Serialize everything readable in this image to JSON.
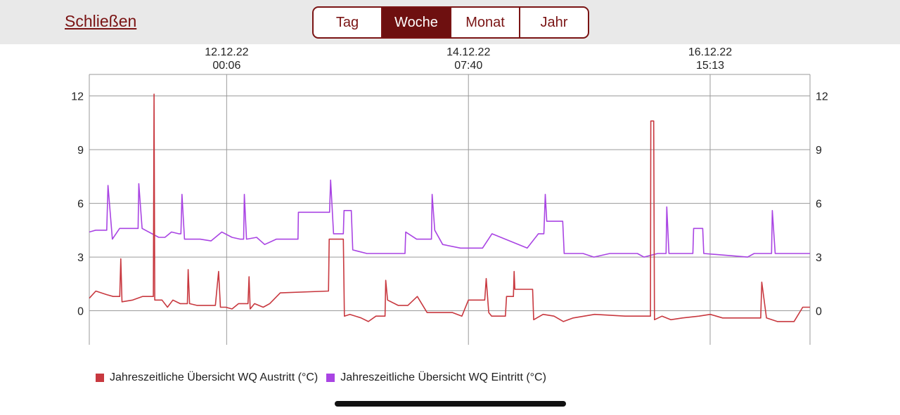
{
  "header": {
    "close_label": "Schließen",
    "periods": [
      "Tag",
      "Woche",
      "Monat",
      "Jahr"
    ],
    "active_period": "Woche",
    "accent_color": "#7a1414"
  },
  "chart_data": {
    "type": "line",
    "x_axis": {
      "kind": "time",
      "range": [
        "10.12.22 16:32",
        "17.12.22 14:10"
      ],
      "ticks": [
        {
          "date": "12.12.22",
          "time": "00:06",
          "t": "12.12.22 00:06"
        },
        {
          "date": "14.12.22",
          "time": "07:40",
          "t": "14.12.22 07:40"
        },
        {
          "date": "16.12.22",
          "time": "15:13",
          "t": "16.12.22 15:13"
        }
      ]
    },
    "y_axis": {
      "ylim": [
        -1.9,
        13.2
      ],
      "ticks": [
        0,
        3,
        6,
        9,
        12
      ],
      "ticks_both_sides": true
    },
    "grid": true,
    "legend_position": "bottom-left",
    "series": [
      {
        "name": "Jahreszeitliche Übersicht WQ Austritt (°C)",
        "color": "#c8383f",
        "points": [
          [
            "10.12.22 16:32",
            0.7
          ],
          [
            "10.12.22 18:02",
            1.1
          ],
          [
            "10.12.22 20:32",
            0.9
          ],
          [
            "10.12.22 22:02",
            0.8
          ],
          [
            "10.12.22 23:32",
            0.8
          ],
          [
            "10.12.22 23:46",
            2.9
          ],
          [
            "11.12.22 00:03",
            0.5
          ],
          [
            "11.12.22 02:30",
            0.6
          ],
          [
            "11.12.22 04:45",
            0.8
          ],
          [
            "11.12.22 07:15",
            0.8
          ],
          [
            "11.12.22 07:25",
            12.1
          ],
          [
            "11.12.22 07:35",
            0.6
          ],
          [
            "11.12.22 09:15",
            0.6
          ],
          [
            "11.12.22 10:30",
            0.2
          ],
          [
            "11.12.22 11:45",
            0.6
          ],
          [
            "11.12.22 13:25",
            0.4
          ],
          [
            "11.12.22 15:05",
            0.4
          ],
          [
            "11.12.22 15:15",
            2.3
          ],
          [
            "11.12.22 15:35",
            0.4
          ],
          [
            "11.12.22 17:15",
            0.3
          ],
          [
            "11.12.22 21:30",
            0.3
          ],
          [
            "11.12.22 22:15",
            2.2
          ],
          [
            "11.12.22 22:40",
            0.2
          ],
          [
            "11.12.22 23:55",
            0.2
          ],
          [
            "12.12.22 01:20",
            0.1
          ],
          [
            "12.12.22 02:50",
            0.4
          ],
          [
            "12.12.22 05:00",
            0.4
          ],
          [
            "12.12.22 05:15",
            1.9
          ],
          [
            "12.12.22 05:30",
            0.1
          ],
          [
            "12.12.22 06:30",
            0.4
          ],
          [
            "12.12.22 08:30",
            0.2
          ],
          [
            "12.12.22 10:00",
            0.4
          ],
          [
            "12.12.22 12:25",
            1.0
          ],
          [
            "12.12.22 23:30",
            1.1
          ],
          [
            "12.12.22 23:40",
            4.0
          ],
          [
            "13.12.22 02:55",
            4.0
          ],
          [
            "13.12.22 03:10",
            -0.3
          ],
          [
            "13.12.22 04:25",
            -0.2
          ],
          [
            "13.12.22 07:00",
            -0.4
          ],
          [
            "13.12.22 08:40",
            -0.6
          ],
          [
            "13.12.22 10:25",
            -0.3
          ],
          [
            "13.12.22 12:30",
            -0.3
          ],
          [
            "13.12.22 12:40",
            1.7
          ],
          [
            "13.12.22 13:05",
            0.6
          ],
          [
            "13.12.22 15:30",
            0.3
          ],
          [
            "13.12.22 17:45",
            0.3
          ],
          [
            "13.12.22 19:55",
            0.8
          ],
          [
            "13.12.22 22:10",
            -0.1
          ],
          [
            "14.12.22 04:00",
            -0.1
          ],
          [
            "14.12.22 06:10",
            -0.3
          ],
          [
            "14.12.22 07:40",
            0.6
          ],
          [
            "14.12.22 11:25",
            0.6
          ],
          [
            "14.12.22 11:45",
            1.8
          ],
          [
            "14.12.22 12:20",
            -0.1
          ],
          [
            "14.12.22 13:00",
            -0.3
          ],
          [
            "14.12.22 16:10",
            -0.3
          ],
          [
            "14.12.22 16:25",
            0.8
          ],
          [
            "14.12.22 18:00",
            0.8
          ],
          [
            "14.12.22 18:10",
            2.2
          ],
          [
            "14.12.22 18:20",
            1.2
          ],
          [
            "14.12.22 22:25",
            1.2
          ],
          [
            "14.12.22 22:40",
            -0.5
          ],
          [
            "15.12.22 00:50",
            -0.2
          ],
          [
            "15.12.22 03:20",
            -0.3
          ],
          [
            "15.12.22 05:30",
            -0.6
          ],
          [
            "15.12.22 07:45",
            -0.4
          ],
          [
            "15.12.22 12:40",
            -0.2
          ],
          [
            "15.12.22 19:40",
            -0.3
          ],
          [
            "16.12.22 01:30",
            -0.3
          ],
          [
            "16.12.22 01:35",
            10.6
          ],
          [
            "16.12.22 02:15",
            10.6
          ],
          [
            "16.12.22 02:25",
            -0.5
          ],
          [
            "16.12.22 04:10",
            -0.3
          ],
          [
            "16.12.22 06:10",
            -0.5
          ],
          [
            "16.12.22 08:50",
            -0.4
          ],
          [
            "16.12.22 12:40",
            -0.3
          ],
          [
            "16.12.22 15:15",
            -0.2
          ],
          [
            "16.12.22 18:05",
            -0.4
          ],
          [
            "16.12.22 23:25",
            -0.4
          ],
          [
            "17.12.22 02:50",
            -0.4
          ],
          [
            "17.12.22 03:05",
            1.6
          ],
          [
            "17.12.22 04:10",
            -0.4
          ],
          [
            "17.12.22 06:40",
            -0.6
          ],
          [
            "17.12.22 10:30",
            -0.6
          ],
          [
            "17.12.22 12:30",
            0.2
          ],
          [
            "17.12.22 14:10",
            0.2
          ]
        ]
      },
      {
        "name": "Jahreszeitliche Übersicht WQ Eintritt (°C)",
        "color": "#a944e3",
        "points": [
          [
            "10.12.22 16:32",
            4.4
          ],
          [
            "10.12.22 18:00",
            4.5
          ],
          [
            "10.12.22 20:32",
            4.5
          ],
          [
            "10.12.22 20:50",
            7.0
          ],
          [
            "10.12.22 21:50",
            4.0
          ],
          [
            "10.12.22 23:30",
            4.6
          ],
          [
            "11.12.22 03:45",
            4.6
          ],
          [
            "11.12.22 03:55",
            7.1
          ],
          [
            "11.12.22 04:40",
            4.6
          ],
          [
            "11.12.22 08:30",
            4.1
          ],
          [
            "11.12.22 09:55",
            4.1
          ],
          [
            "11.12.22 11:25",
            4.4
          ],
          [
            "11.12.22 13:05",
            4.3
          ],
          [
            "11.12.22 13:35",
            4.3
          ],
          [
            "11.12.22 13:50",
            6.5
          ],
          [
            "11.12.22 14:25",
            4.0
          ],
          [
            "11.12.22 18:00",
            4.0
          ],
          [
            "11.12.22 20:30",
            3.9
          ],
          [
            "11.12.22 23:00",
            4.4
          ],
          [
            "12.12.22 01:20",
            4.1
          ],
          [
            "12.12.22 03:15",
            4.0
          ],
          [
            "12.12.22 04:00",
            4.0
          ],
          [
            "12.12.22 04:10",
            6.5
          ],
          [
            "12.12.22 04:40",
            4.0
          ],
          [
            "12.12.22 07:00",
            4.1
          ],
          [
            "12.12.22 08:50",
            3.7
          ],
          [
            "12.12.22 11:30",
            4.0
          ],
          [
            "12.12.22 16:30",
            4.0
          ],
          [
            "12.12.22 16:35",
            5.5
          ],
          [
            "12.12.22 23:45",
            5.5
          ],
          [
            "13.12.22 00:00",
            7.3
          ],
          [
            "13.12.22 00:40",
            4.3
          ],
          [
            "13.12.22 02:55",
            4.3
          ],
          [
            "13.12.22 03:05",
            5.6
          ],
          [
            "13.12.22 04:45",
            5.6
          ],
          [
            "13.12.22 05:05",
            3.4
          ],
          [
            "13.12.22 08:20",
            3.2
          ],
          [
            "13.12.22 10:45",
            3.2
          ],
          [
            "13.12.22 17:05",
            3.2
          ],
          [
            "13.12.22 17:15",
            4.4
          ],
          [
            "13.12.22 19:45",
            4.0
          ],
          [
            "13.12.22 23:10",
            4.0
          ],
          [
            "13.12.22 23:20",
            6.5
          ],
          [
            "13.12.22 23:55",
            4.5
          ],
          [
            "14.12.22 01:45",
            3.7
          ],
          [
            "14.12.22 05:50",
            3.5
          ],
          [
            "14.12.22 10:55",
            3.5
          ],
          [
            "14.12.22 13:05",
            4.3
          ],
          [
            "14.12.22 21:10",
            3.5
          ],
          [
            "14.12.22 23:45",
            4.3
          ],
          [
            "15.12.22 01:00",
            4.3
          ],
          [
            "15.12.22 01:20",
            6.5
          ],
          [
            "15.12.22 01:40",
            5.0
          ],
          [
            "15.12.22 05:20",
            5.0
          ],
          [
            "15.12.22 05:40",
            3.2
          ],
          [
            "15.12.22 10:00",
            3.2
          ],
          [
            "15.12.22 12:30",
            3.0
          ],
          [
            "15.12.22 16:10",
            3.2
          ],
          [
            "15.12.22 22:30",
            3.2
          ],
          [
            "16.12.22 00:00",
            3.0
          ],
          [
            "16.12.22 03:10",
            3.2
          ],
          [
            "16.12.22 05:05",
            3.2
          ],
          [
            "16.12.22 05:15",
            5.8
          ],
          [
            "16.12.22 05:45",
            3.2
          ],
          [
            "16.12.22 11:15",
            3.2
          ],
          [
            "16.12.22 11:25",
            4.6
          ],
          [
            "16.12.22 13:30",
            4.6
          ],
          [
            "16.12.22 13:45",
            3.2
          ],
          [
            "16.12.22 23:50",
            3.0
          ],
          [
            "17.12.22 01:20",
            3.2
          ],
          [
            "17.12.22 05:20",
            3.2
          ],
          [
            "17.12.22 05:30",
            5.6
          ],
          [
            "17.12.22 06:10",
            3.2
          ],
          [
            "17.12.22 14:10",
            3.2
          ]
        ]
      }
    ]
  }
}
